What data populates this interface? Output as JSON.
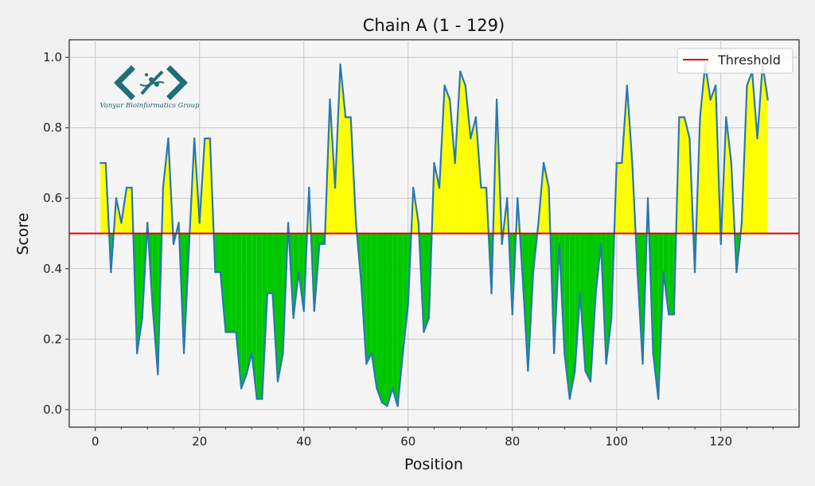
{
  "chart_data": {
    "type": "area",
    "title": "Chain A (1 - 129)",
    "xlabel": "Position",
    "ylabel": "Score",
    "xlim": [
      -5,
      135
    ],
    "ylim": [
      -0.05,
      1.05
    ],
    "xticks": [
      0,
      20,
      40,
      60,
      80,
      100,
      120
    ],
    "yticks": [
      0.0,
      0.2,
      0.4,
      0.6,
      0.8,
      1.0
    ],
    "xtick_labels": [
      "0",
      "20",
      "40",
      "60",
      "80",
      "100",
      "120"
    ],
    "ytick_labels": [
      "0.0",
      "0.2",
      "0.4",
      "0.6",
      "0.8",
      "1.0"
    ],
    "grid": true,
    "threshold": 0.5,
    "legend": {
      "position": "top-right",
      "entries": [
        "Threshold"
      ]
    },
    "colors": {
      "line": "#2878b4",
      "above": "#ffff00",
      "below": "#00c800",
      "threshold": "#e00000"
    },
    "x": [
      1,
      2,
      3,
      4,
      5,
      6,
      7,
      8,
      9,
      10,
      11,
      12,
      13,
      14,
      15,
      16,
      17,
      18,
      19,
      20,
      21,
      22,
      23,
      24,
      25,
      26,
      27,
      28,
      29,
      30,
      31,
      32,
      33,
      34,
      35,
      36,
      37,
      38,
      39,
      40,
      41,
      42,
      43,
      44,
      45,
      46,
      47,
      48,
      49,
      50,
      51,
      52,
      53,
      54,
      55,
      56,
      57,
      58,
      59,
      60,
      61,
      62,
      63,
      64,
      65,
      66,
      67,
      68,
      69,
      70,
      71,
      72,
      73,
      74,
      75,
      76,
      77,
      78,
      79,
      80,
      81,
      82,
      83,
      84,
      85,
      86,
      87,
      88,
      89,
      90,
      91,
      92,
      93,
      94,
      95,
      96,
      97,
      98,
      99,
      100,
      101,
      102,
      103,
      104,
      105,
      106,
      107,
      108,
      109,
      110,
      111,
      112,
      113,
      114,
      115,
      116,
      117,
      118,
      119,
      120,
      121,
      122,
      123,
      124,
      125,
      126,
      127,
      128,
      129
    ],
    "y": [
      0.7,
      0.7,
      0.39,
      0.6,
      0.53,
      0.63,
      0.63,
      0.16,
      0.26,
      0.53,
      0.29,
      0.1,
      0.63,
      0.77,
      0.47,
      0.53,
      0.16,
      0.47,
      0.77,
      0.53,
      0.77,
      0.77,
      0.39,
      0.39,
      0.22,
      0.22,
      0.22,
      0.06,
      0.1,
      0.16,
      0.03,
      0.03,
      0.33,
      0.33,
      0.08,
      0.16,
      0.53,
      0.26,
      0.39,
      0.28,
      0.63,
      0.28,
      0.47,
      0.47,
      0.88,
      0.63,
      0.98,
      0.83,
      0.83,
      0.53,
      0.36,
      0.13,
      0.16,
      0.06,
      0.02,
      0.01,
      0.06,
      0.01,
      0.16,
      0.3,
      0.63,
      0.53,
      0.22,
      0.26,
      0.7,
      0.63,
      0.92,
      0.88,
      0.7,
      0.96,
      0.92,
      0.77,
      0.83,
      0.63,
      0.63,
      0.33,
      0.88,
      0.47,
      0.6,
      0.27,
      0.6,
      0.37,
      0.11,
      0.39,
      0.53,
      0.7,
      0.63,
      0.16,
      0.47,
      0.16,
      0.03,
      0.11,
      0.33,
      0.11,
      0.08,
      0.33,
      0.47,
      0.13,
      0.26,
      0.7,
      0.7,
      0.92,
      0.7,
      0.39,
      0.13,
      0.6,
      0.16,
      0.03,
      0.39,
      0.27,
      0.27,
      0.83,
      0.83,
      0.77,
      0.39,
      0.83,
      0.98,
      0.88,
      0.92,
      0.47,
      0.83,
      0.7,
      0.39,
      0.53,
      0.92,
      0.96,
      0.77,
      0.98,
      0.88
    ]
  },
  "watermark": {
    "text": "Vanyar Bioinformatics Group"
  }
}
